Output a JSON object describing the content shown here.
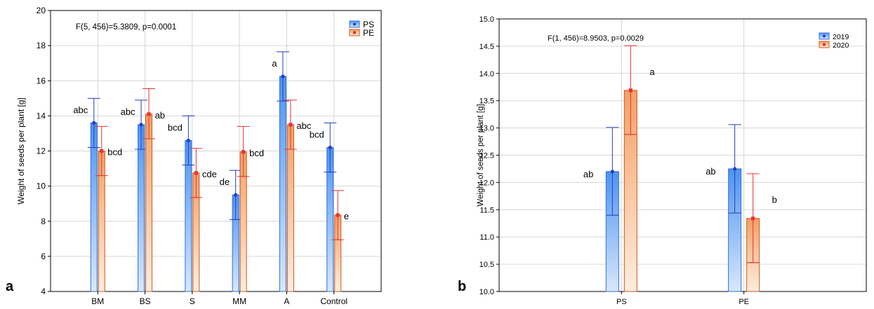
{
  "chart_data": [
    {
      "panel_letter": "a",
      "type": "bar",
      "categories": [
        "BM",
        "BS",
        "S",
        "MM",
        "A",
        "Control"
      ],
      "ylabel": "Weight of seeds per plant [g]",
      "ylim": [
        4,
        20
      ],
      "yticks": [
        4,
        6,
        8,
        10,
        12,
        14,
        16,
        18,
        20
      ],
      "grid": true,
      "stat_text": "F(5, 456)=5.3809, p=0.0001",
      "legend_position": "top-right",
      "series": [
        {
          "name": "PS",
          "color": "#2f6fe0",
          "values": [
            13.6,
            13.5,
            12.6,
            9.5,
            16.25,
            12.2
          ],
          "se_low": [
            12.2,
            12.1,
            11.2,
            8.1,
            14.85,
            10.8
          ],
          "se_high": [
            13.6,
            13.5,
            12.6,
            9.5,
            16.25,
            12.2
          ],
          "ci_low": [
            12.2,
            12.1,
            11.2,
            8.1,
            14.85,
            10.8
          ],
          "ci_high": [
            15.0,
            14.9,
            14.0,
            10.9,
            17.65,
            13.6
          ],
          "letters": [
            "abc",
            "abc",
            "bcd",
            "de",
            "a",
            "bcd"
          ]
        },
        {
          "name": "PE",
          "color": "#e8501e",
          "values": [
            12.0,
            14.1,
            10.75,
            11.95,
            13.5,
            8.35
          ],
          "se_low": [
            10.6,
            12.7,
            9.35,
            10.55,
            12.1,
            6.95
          ],
          "se_high": [
            12.0,
            14.1,
            10.75,
            11.95,
            13.5,
            8.35
          ],
          "ci_low": [
            10.6,
            12.7,
            9.35,
            10.55,
            12.1,
            6.95
          ],
          "ci_high": [
            13.4,
            15.55,
            12.15,
            13.4,
            14.9,
            9.75
          ],
          "letters": [
            "bcd",
            "ab",
            "cde",
            "bcd",
            "abc",
            "e"
          ]
        }
      ]
    },
    {
      "panel_letter": "b",
      "type": "bar",
      "categories": [
        "PS",
        "PE"
      ],
      "ylabel": "Weight of seeds per plant [g]",
      "ylim": [
        10.0,
        15.0
      ],
      "yticks": [
        "10.0",
        "10.5",
        "11.0",
        "11.5",
        "12.0",
        "12.5",
        "13.0",
        "13.5",
        "14.0",
        "14.5",
        "15.0"
      ],
      "grid": true,
      "stat_text": "F(1, 456)=8.9503, p=0.0029",
      "legend_position": "top-right",
      "series": [
        {
          "name": "2019",
          "color": "#2f6fe0",
          "values": [
            12.2,
            12.25
          ],
          "se_low": [
            11.4,
            11.44
          ],
          "ci_low": [
            11.4,
            11.44
          ],
          "ci_high": [
            13.01,
            13.06
          ],
          "letters": [
            "ab",
            "ab"
          ]
        },
        {
          "name": "2020",
          "color": "#e8501e",
          "values": [
            13.69,
            11.34
          ],
          "se_low": [
            12.88,
            10.53
          ],
          "ci_low": [
            12.88,
            10.53
          ],
          "ci_high": [
            14.51,
            12.16
          ],
          "letters": [
            "a",
            "b"
          ]
        }
      ]
    }
  ]
}
